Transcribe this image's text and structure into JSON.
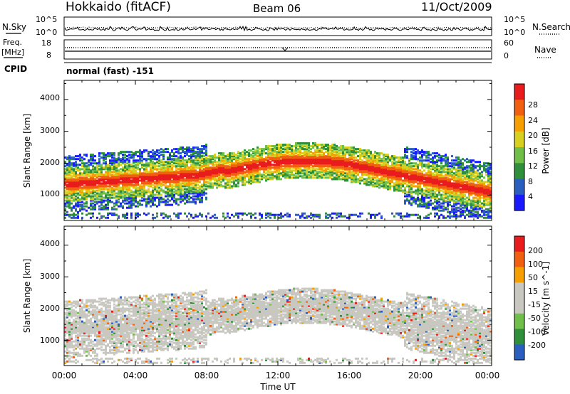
{
  "header": {
    "station": "Hokkaido (fitACF)",
    "beam": "Beam 06",
    "date": "11/Oct/2009",
    "cpid": "normal (fast) -151"
  },
  "noise_panel": {
    "left_label": "N.Sky",
    "right_label": "N.Search",
    "left_ticks": [
      "10^5",
      "10^0"
    ],
    "right_ticks": [
      "10^5",
      "10^0"
    ]
  },
  "freq_panel": {
    "left_label_1": "Freq.",
    "left_label_2": "[MHz]",
    "left_ticks": [
      "18",
      "8"
    ],
    "right_label": "Nave",
    "right_ticks": [
      "60",
      "0"
    ],
    "cpid_label": "CPID"
  },
  "colors": {
    "power": [
      "#1a1aff",
      "#2a5fbf",
      "#2f8f3a",
      "#6fbf4a",
      "#d8d020",
      "#f5a000",
      "#f06010",
      "#e81c1c"
    ],
    "velocity": [
      "#e81c1c",
      "#f06010",
      "#f5a000",
      "#c8c8c0",
      "#c8c8c0",
      "#6fbf4a",
      "#2f8f3a",
      "#2a5fbf"
    ]
  },
  "chart_data": [
    {
      "type": "heatmap",
      "name": "power",
      "ylabel": "Slant Range [km]",
      "yticks": [
        "1000",
        "2000",
        "3000",
        "4000"
      ],
      "ylim": [
        200,
        4600
      ],
      "xlim_hours": [
        0,
        24
      ],
      "colorbar_label": "Power [dB]",
      "colorbar_ticks": [
        "4",
        "8",
        "12",
        "16",
        "20",
        "24",
        "28"
      ],
      "colorbar_range": [
        0,
        32
      ]
    },
    {
      "type": "heatmap",
      "name": "velocity",
      "ylabel": "Slant Range [km]",
      "yticks": [
        "1000",
        "2000",
        "3000",
        "4000"
      ],
      "ylim": [
        200,
        4600
      ],
      "xlim_hours": [
        0,
        24
      ],
      "colorbar_label": "Velocity [m s^-1]",
      "colorbar_ticks": [
        "200",
        "100",
        "50",
        "15",
        "-15",
        "-50",
        "-100",
        "-200"
      ],
      "xticks": [
        "00:00",
        "04:00",
        "08:00",
        "12:00",
        "16:00",
        "20:00",
        "00:00"
      ],
      "xlabel": "Time UT"
    }
  ]
}
